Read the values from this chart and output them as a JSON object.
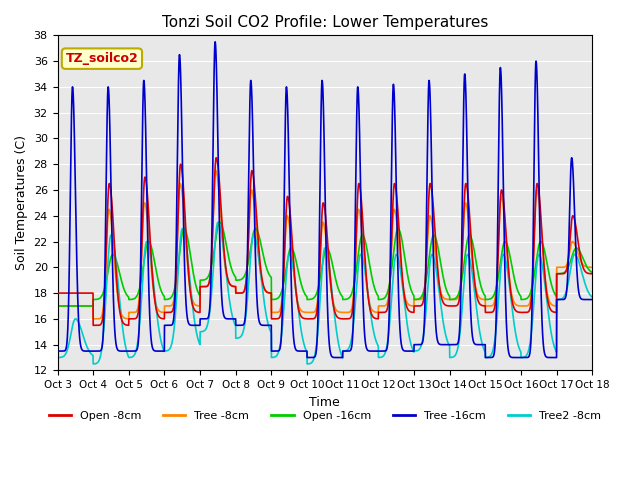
{
  "title": "Tonzi Soil CO2 Profile: Lower Temperatures",
  "xlabel": "Time",
  "ylabel": "Soil Temperatures (C)",
  "ylim": [
    12,
    38
  ],
  "yticks": [
    12,
    14,
    16,
    18,
    20,
    22,
    24,
    26,
    28,
    30,
    32,
    34,
    36,
    38
  ],
  "x_tick_labels": [
    "Oct 3",
    "Oct 4",
    "Oct 5",
    "Oct 6",
    "Oct 7",
    "Oct 8",
    "Oct 9",
    "Oct 10",
    "Oct 11",
    "Oct 12",
    "Oct 13",
    "Oct 14",
    "Oct 15",
    "Oct 16",
    "Oct 17",
    "Oct 18"
  ],
  "annotation_text": "TZ_soilco2",
  "annotation_color": "#cc0000",
  "annotation_bg": "#ffffcc",
  "annotation_border": "#bbaa00",
  "series_Open_8cm": {
    "color": "#dd0000",
    "lw": 1.2
  },
  "series_Tree_8cm": {
    "color": "#ff8800",
    "lw": 1.2
  },
  "series_Open_16cm": {
    "color": "#00cc00",
    "lw": 1.2
  },
  "series_Tree_16cm": {
    "color": "#0000cc",
    "lw": 1.2
  },
  "series_Tree2_8cm": {
    "color": "#00cccc",
    "lw": 1.2
  },
  "bg_color": "#e8e8e8",
  "grid_color": "#ffffff",
  "n_days": 15,
  "pts_per_day": 240,
  "figsize": [
    6.4,
    4.8
  ],
  "dpi": 100
}
